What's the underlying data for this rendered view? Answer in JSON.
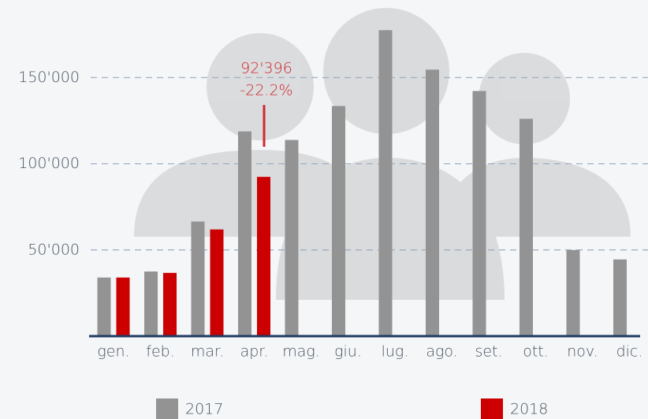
{
  "chart_data": {
    "type": "bar",
    "categories": [
      "gen.",
      "feb.",
      "mar.",
      "apr.",
      "mag.",
      "giu.",
      "lug.",
      "ago.",
      "set.",
      "ott.",
      "nov.",
      "dic."
    ],
    "series": [
      {
        "name": "2017",
        "color": "#939393",
        "values": [
          34000,
          37500,
          66500,
          118760,
          113800,
          133500,
          177500,
          154600,
          142200,
          126100,
          50000,
          44500
        ]
      },
      {
        "name": "2018",
        "color": "#cc0000",
        "values": [
          34000,
          36700,
          61900,
          92396,
          null,
          null,
          null,
          null,
          null,
          null,
          null,
          null
        ]
      }
    ],
    "annotations": [
      "92'396",
      "-22.2%"
    ],
    "ylim": [
      0,
      195000
    ],
    "yticks": [
      {
        "value": 50000,
        "label": "50'000"
      },
      {
        "value": 100000,
        "label": "100'000"
      },
      {
        "value": 150000,
        "label": "150'000"
      }
    ],
    "grid": true
  }
}
